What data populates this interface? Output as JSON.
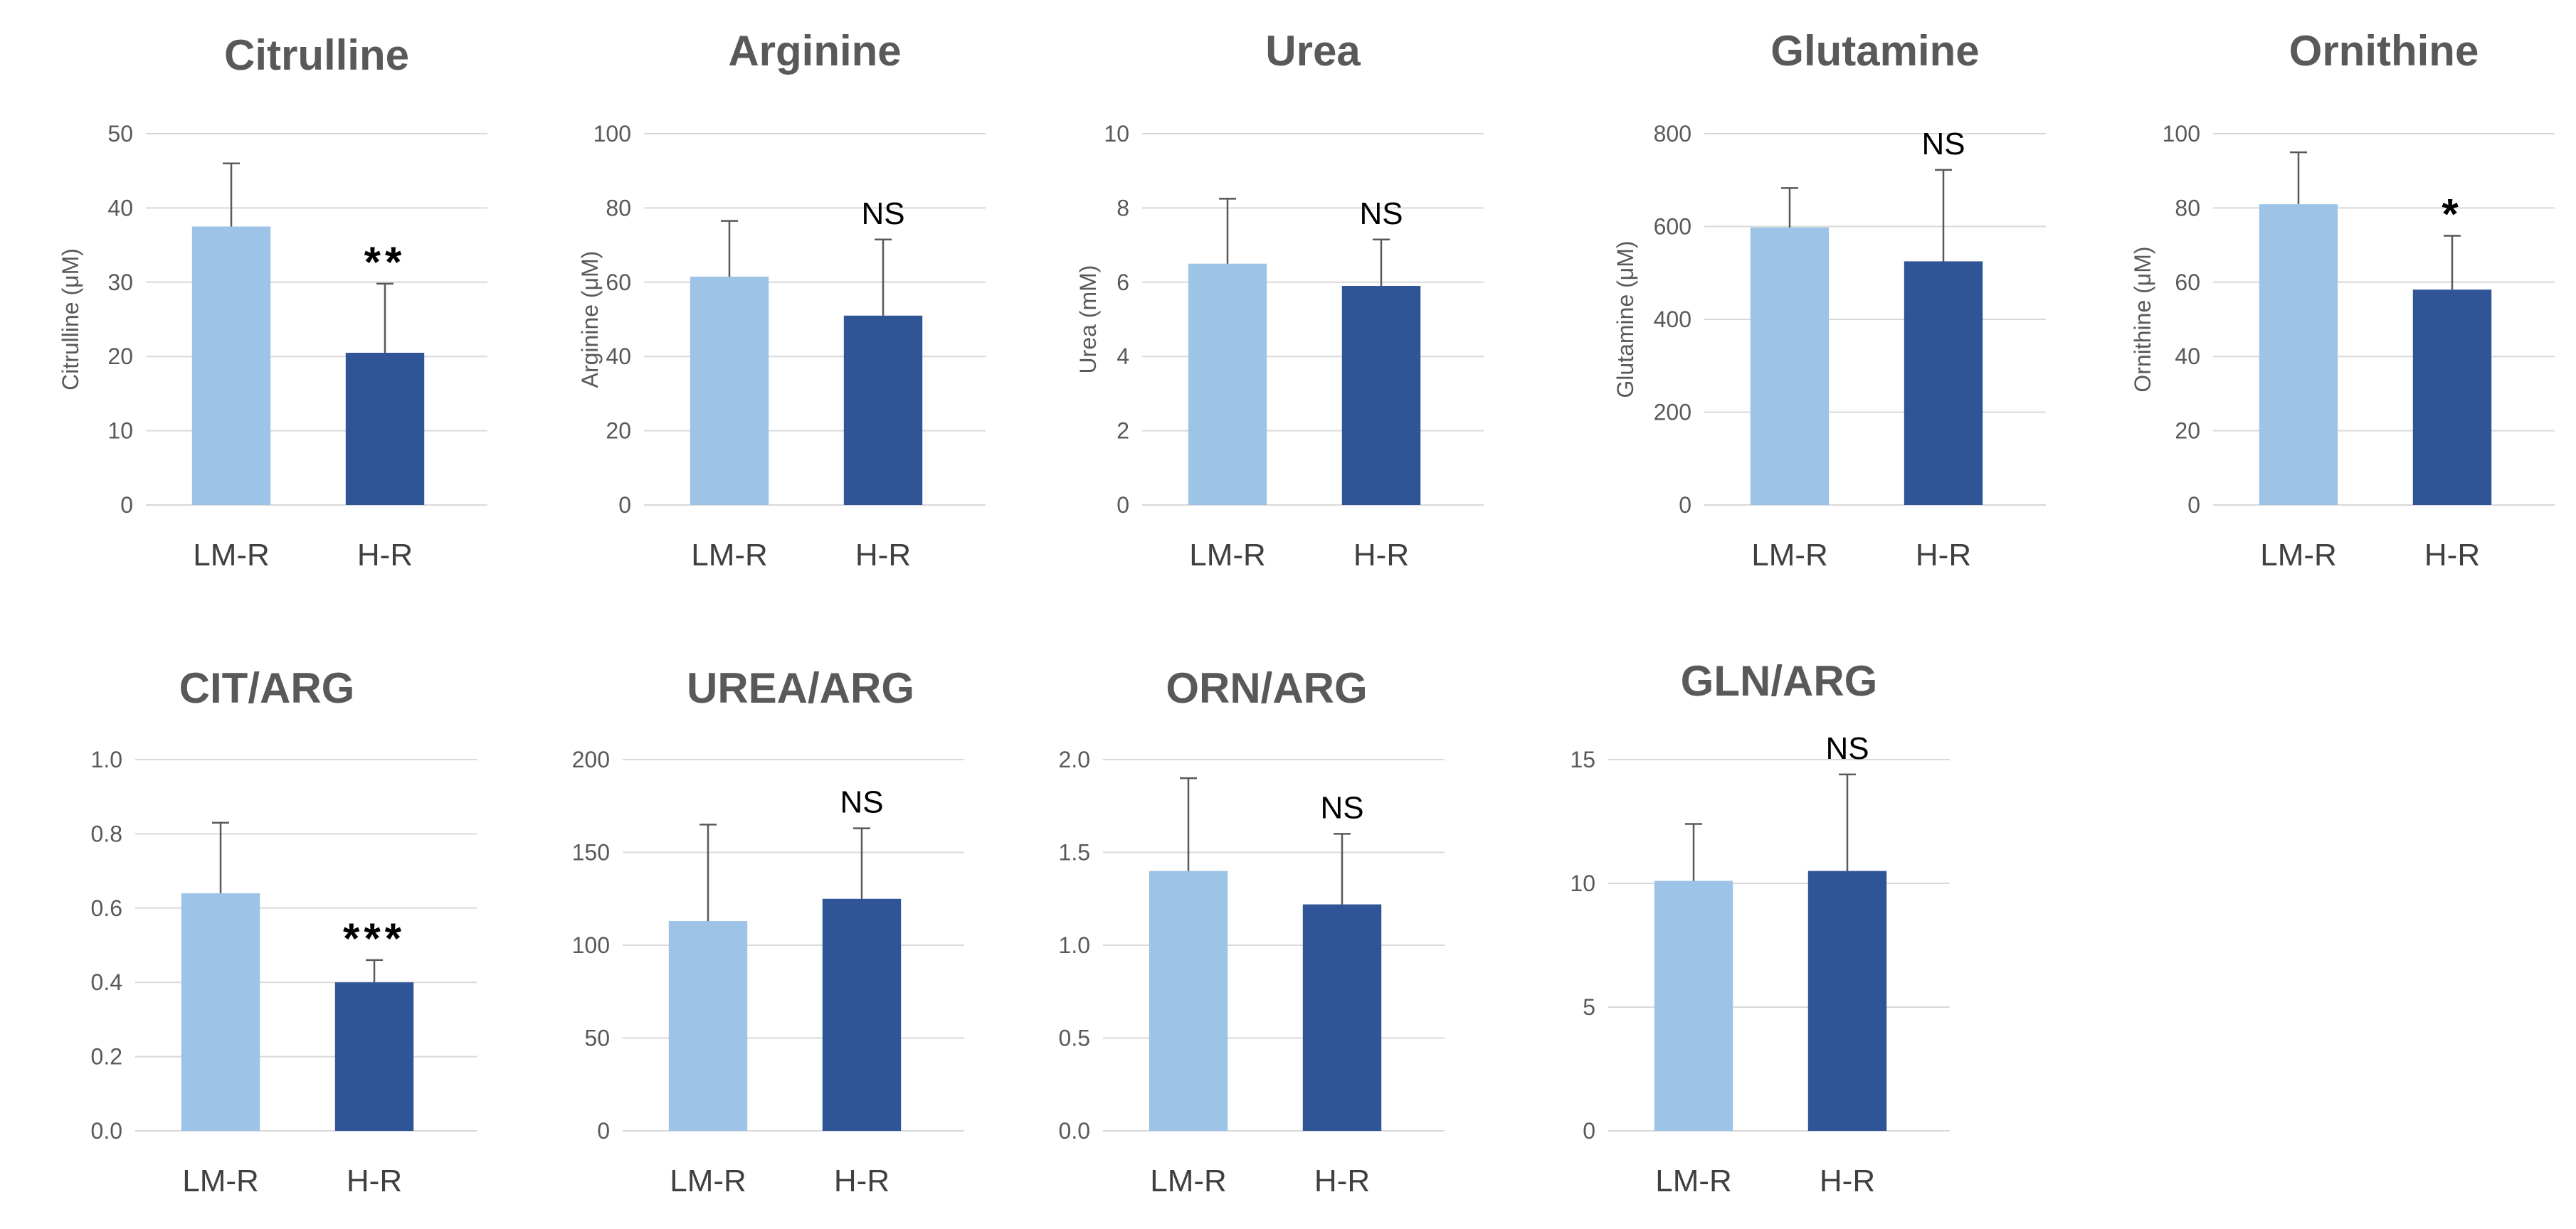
{
  "colors": {
    "lm_r": "#9dc3e6",
    "h_r": "#2f5597",
    "grid": "#d9d9d9",
    "error": "#595959",
    "text": "#595959"
  },
  "chart_data": [
    {
      "type": "bar",
      "title": "Citrulline",
      "ylabel": "Citrulline (μM)",
      "categories": [
        "LM-R",
        "H-R"
      ],
      "values": [
        37.5,
        20.5
      ],
      "errors": [
        8.5,
        9.3
      ],
      "ylim": [
        0,
        50
      ],
      "ticks": [
        "0",
        "10",
        "20",
        "30",
        "40",
        "50"
      ],
      "annotation": "**"
    },
    {
      "type": "bar",
      "title": "Arginine",
      "ylabel": "Arginine (μM)",
      "categories": [
        "LM-R",
        "H-R"
      ],
      "values": [
        61.5,
        51
      ],
      "errors": [
        15,
        20.5
      ],
      "ylim": [
        0,
        100
      ],
      "ticks": [
        "0",
        "20",
        "40",
        "60",
        "80",
        "100"
      ],
      "annotation": "NS"
    },
    {
      "type": "bar",
      "title": "Urea",
      "ylabel": "Urea (mM)",
      "categories": [
        "LM-R",
        "H-R"
      ],
      "values": [
        6.5,
        5.9
      ],
      "errors": [
        1.75,
        1.25
      ],
      "ylim": [
        0,
        10
      ],
      "ticks": [
        "0",
        "2",
        "4",
        "6",
        "8",
        "10"
      ],
      "annotation": "NS"
    },
    {
      "type": "bar",
      "title": "Glutamine",
      "ylabel": "Glutamine (μM)",
      "categories": [
        "LM-R",
        "H-R"
      ],
      "values": [
        598,
        525
      ],
      "errors": [
        85,
        197
      ],
      "ylim": [
        0,
        800
      ],
      "ticks": [
        "0",
        "200",
        "400",
        "600",
        "800"
      ],
      "annotation": "NS"
    },
    {
      "type": "bar",
      "title": "Ornithine",
      "ylabel": "Ornithine (μM)",
      "categories": [
        "LM-R",
        "H-R"
      ],
      "values": [
        81,
        58
      ],
      "errors": [
        14,
        14.5
      ],
      "ylim": [
        0,
        100
      ],
      "ticks": [
        "0",
        "20",
        "40",
        "60",
        "80",
        "100"
      ],
      "annotation": "*"
    },
    {
      "type": "bar",
      "title": "CIT/ARG",
      "ylabel": "",
      "categories": [
        "LM-R",
        "H-R"
      ],
      "values": [
        0.64,
        0.4
      ],
      "errors": [
        0.19,
        0.06
      ],
      "ylim": [
        0,
        1.0
      ],
      "ticks": [
        "0.0",
        "0.2",
        "0.4",
        "0.6",
        "0.8",
        "1.0"
      ],
      "annotation": "***"
    },
    {
      "type": "bar",
      "title": "UREA/ARG",
      "ylabel": "",
      "categories": [
        "LM-R",
        "H-R"
      ],
      "values": [
        113,
        125
      ],
      "errors": [
        52,
        38
      ],
      "ylim": [
        0,
        200
      ],
      "ticks": [
        "0",
        "50",
        "100",
        "150",
        "200"
      ],
      "annotation": "NS"
    },
    {
      "type": "bar",
      "title": "ORN/ARG",
      "ylabel": "",
      "categories": [
        "LM-R",
        "H-R"
      ],
      "values": [
        1.4,
        1.22
      ],
      "errors": [
        0.5,
        0.38
      ],
      "ylim": [
        0,
        2.0
      ],
      "ticks": [
        "0.0",
        "0.5",
        "1.0",
        "1.5",
        "2.0"
      ],
      "annotation": "NS"
    },
    {
      "type": "bar",
      "title": "GLN/ARG",
      "ylabel": "",
      "categories": [
        "LM-R",
        "H-R"
      ],
      "values": [
        10.1,
        10.5
      ],
      "errors": [
        2.3,
        3.9
      ],
      "ylim": [
        0,
        15
      ],
      "ticks": [
        "0",
        "5",
        "10",
        "15"
      ],
      "annotation": "NS"
    }
  ]
}
